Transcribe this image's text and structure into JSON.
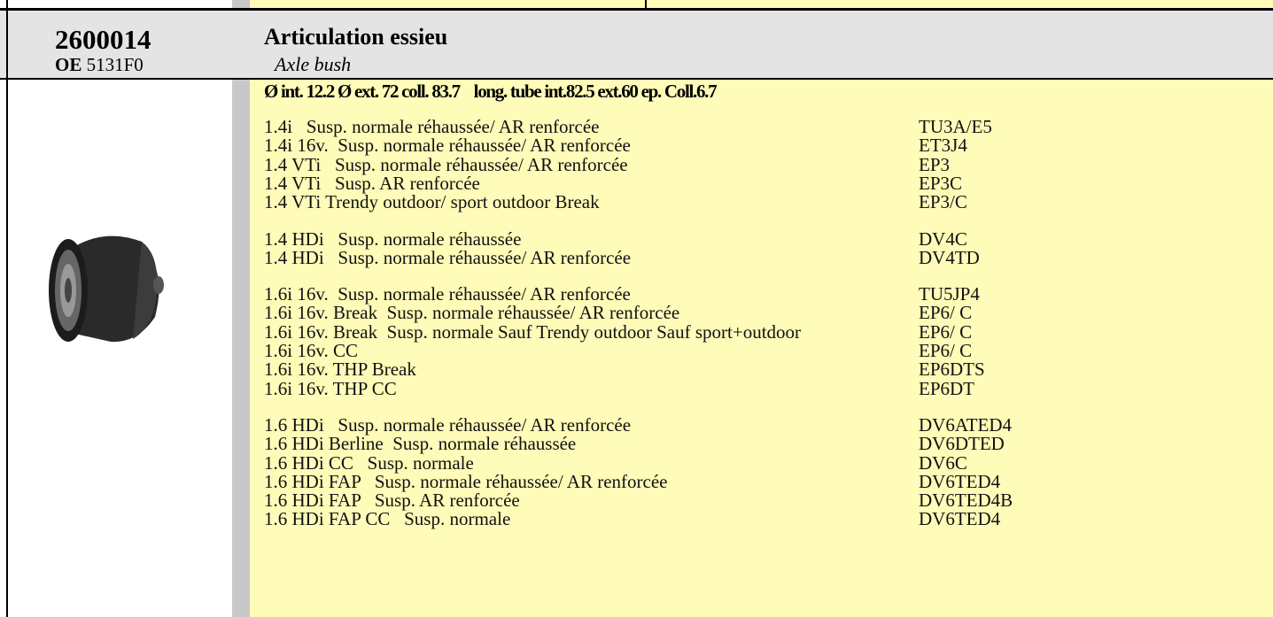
{
  "part": {
    "number": "2600014",
    "oe_label": "OE",
    "oe_number": "5131F0",
    "title": "Articulation essieu",
    "subtitle": "Axle bush",
    "spec": "Ø int. 12.2 Ø ext. 72 coll. 83.7    long. tube int.82.5 ext.60 ep. Coll.6.7"
  },
  "groups": [
    {
      "rows": [
        [
          "1.4i   Susp. normale réhaussée/ AR renforcée",
          "TU3A/E5"
        ],
        [
          "1.4i 16v.  Susp. normale réhaussée/ AR renforcée",
          "ET3J4"
        ],
        [
          "1.4 VTi   Susp. normale réhaussée/ AR renforcée",
          "EP3"
        ],
        [
          "1.4 VTi   Susp. AR renforcée",
          "EP3C"
        ],
        [
          "1.4 VTi Trendy outdoor/ sport outdoor Break",
          "EP3/C"
        ]
      ]
    },
    {
      "rows": [
        [
          "1.4 HDi   Susp. normale réhaussée",
          "DV4C"
        ],
        [
          "1.4 HDi   Susp. normale réhaussée/ AR renforcée",
          "DV4TD"
        ]
      ]
    },
    {
      "rows": [
        [
          "1.6i 16v.  Susp. normale réhaussée/ AR renforcée",
          "TU5JP4"
        ],
        [
          "1.6i 16v. Break  Susp. normale réhaussée/ AR renforcée",
          "EP6/ C"
        ],
        [
          "1.6i 16v. Break  Susp. normale Sauf Trendy outdoor Sauf sport+outdoor",
          "EP6/ C"
        ],
        [
          "1.6i 16v. CC",
          "EP6/ C"
        ],
        [
          "1.6i 16v. THP Break",
          "EP6DTS"
        ],
        [
          "1.6i 16v. THP CC",
          "EP6DT"
        ]
      ]
    },
    {
      "rows": [
        [
          "1.6 HDi   Susp. normale réhaussée/ AR renforcée",
          "DV6ATED4"
        ],
        [
          "1.6 HDi Berline  Susp. normale réhaussée",
          "DV6DTED"
        ],
        [
          "1.6 HDi CC   Susp. normale",
          "DV6C"
        ],
        [
          "1.6 HDi FAP   Susp. normale réhaussée/ AR renforcée",
          "DV6TED4"
        ],
        [
          "1.6 HDi FAP   Susp. AR renforcée",
          "DV6TED4B"
        ],
        [
          "1.6 HDi FAP CC   Susp. normale",
          "DV6TED4"
        ]
      ]
    }
  ]
}
